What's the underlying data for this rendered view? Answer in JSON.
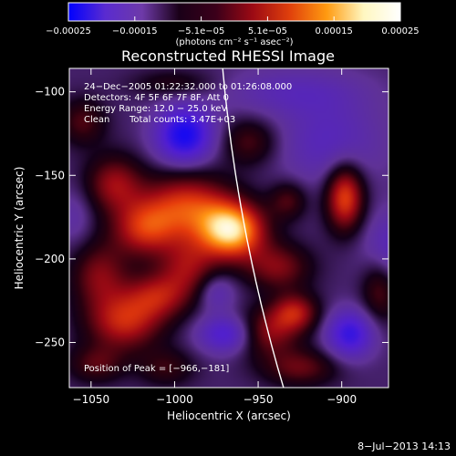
{
  "chart_data": {
    "type": "heatmap",
    "title": "Reconstructed RHESSI Image",
    "xlabel": "Heliocentric X (arcsec)",
    "ylabel": "Heliocentric Y (arcsec)",
    "xlim": [
      -1063,
      -872
    ],
    "ylim": [
      -277,
      -86
    ],
    "x_ticks": [
      {
        "v": -1050,
        "label": "−1050"
      },
      {
        "v": -1000,
        "label": "−1000"
      },
      {
        "v": -950,
        "label": "−950"
      },
      {
        "v": -900,
        "label": "−900"
      }
    ],
    "y_ticks": [
      {
        "v": -100,
        "label": "−100"
      },
      {
        "v": -150,
        "label": "−150"
      },
      {
        "v": -200,
        "label": "−200"
      },
      {
        "v": -250,
        "label": "−250"
      }
    ],
    "colorbar": {
      "min": -0.00025,
      "max": 0.00025,
      "tick_labels": [
        "−0.00025",
        "−0.00015",
        "−5.1e−05",
        "5.1e−05",
        "0.00015",
        "0.00025"
      ],
      "unit_label": "(photons cm⁻² s⁻¹ asec⁻²)",
      "colors": [
        "#0000ff",
        "#5a2bd0",
        "#6e3aa8",
        "#1a0018",
        "#3b001a",
        "#9c0a14",
        "#e0400c",
        "#ff9a10",
        "#fff7c0",
        "#ffffff"
      ]
    },
    "annotations": {
      "time_range": "24−Dec−2005 01:22:32.000 to 01:26:08.000",
      "detectors": "Detectors: 4F 5F 6F 7F 8F, Att 0",
      "energy": "Energy Range: 12.0 − 25.0 keV",
      "clean": "Clean",
      "counts": "Total counts: 3.47E+03",
      "peak": "Position of Peak = [−966,−181]"
    },
    "peak": {
      "x": -966,
      "y": -181
    },
    "blobs": [
      {
        "x": -966,
        "y": -183,
        "sx": 14,
        "sy": 12,
        "a": 1.0
      },
      {
        "x": -993,
        "y": -168,
        "sx": 18,
        "sy": 14,
        "a": 0.6
      },
      {
        "x": -1018,
        "y": -182,
        "sx": 14,
        "sy": 12,
        "a": 0.55
      },
      {
        "x": -1036,
        "y": -155,
        "sx": 12,
        "sy": 12,
        "a": 0.45
      },
      {
        "x": -1045,
        "y": -210,
        "sx": 12,
        "sy": 14,
        "a": 0.4
      },
      {
        "x": -1030,
        "y": -238,
        "sx": 16,
        "sy": 12,
        "a": 0.55
      },
      {
        "x": -1010,
        "y": -222,
        "sx": 14,
        "sy": 10,
        "a": 0.45
      },
      {
        "x": -992,
        "y": -205,
        "sx": 12,
        "sy": 12,
        "a": 0.4
      },
      {
        "x": -938,
        "y": -205,
        "sx": 14,
        "sy": 10,
        "a": 0.4
      },
      {
        "x": -928,
        "y": -232,
        "sx": 10,
        "sy": 8,
        "a": 0.5
      },
      {
        "x": -946,
        "y": -244,
        "sx": 14,
        "sy": 10,
        "a": 0.45
      },
      {
        "x": -955,
        "y": -130,
        "sx": 12,
        "sy": 10,
        "a": 0.3
      },
      {
        "x": -932,
        "y": -165,
        "sx": 8,
        "sy": 8,
        "a": 0.3
      },
      {
        "x": -898,
        "y": -163,
        "sx": 8,
        "sy": 14,
        "a": 0.7
      },
      {
        "x": -877,
        "y": -218,
        "sx": 8,
        "sy": 14,
        "a": 0.35
      },
      {
        "x": -925,
        "y": -265,
        "sx": 16,
        "sy": 8,
        "a": 0.35
      },
      {
        "x": -1055,
        "y": -118,
        "sx": 10,
        "sy": 10,
        "a": 0.3
      },
      {
        "x": -1047,
        "y": -263,
        "sx": 12,
        "sy": 8,
        "a": 0.3
      },
      {
        "x": -1005,
        "y": -265,
        "sx": 12,
        "sy": 8,
        "a": 0.25
      },
      {
        "x": -1000,
        "y": -95,
        "sx": 18,
        "sy": 6,
        "a": 0.2
      },
      {
        "x": -994,
        "y": -126,
        "sx": 12,
        "sy": 12,
        "a": -0.7
      },
      {
        "x": -907,
        "y": -130,
        "sx": 22,
        "sy": 18,
        "a": -0.28
      },
      {
        "x": -895,
        "y": -245,
        "sx": 10,
        "sy": 10,
        "a": -0.55
      },
      {
        "x": -968,
        "y": -245,
        "sx": 12,
        "sy": 8,
        "a": -0.5
      },
      {
        "x": -975,
        "y": -220,
        "sx": 8,
        "sy": 8,
        "a": -0.25
      },
      {
        "x": -870,
        "y": -195,
        "sx": 12,
        "sy": 16,
        "a": -0.3
      },
      {
        "x": -1060,
        "y": -175,
        "sx": 8,
        "sy": 12,
        "a": -0.15
      },
      {
        "x": -930,
        "y": -100,
        "sx": 30,
        "sy": 10,
        "a": -0.22
      }
    ]
  },
  "footer_date": "8−Jul−2013 14:13"
}
